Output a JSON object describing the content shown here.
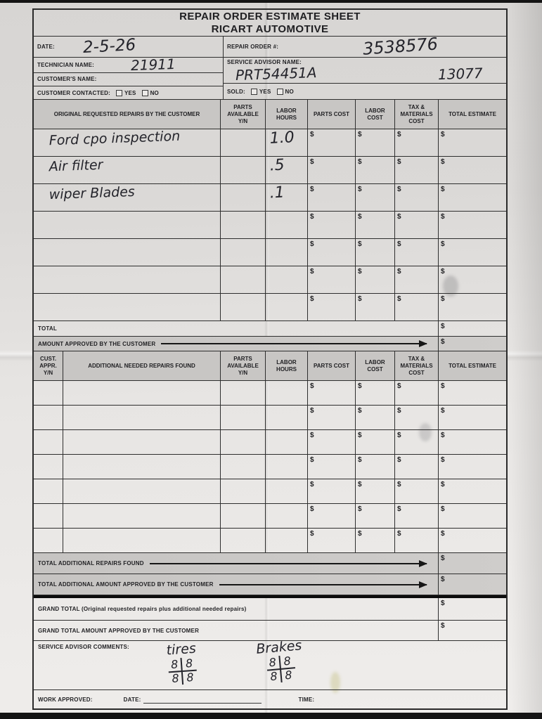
{
  "currency_symbol": "$",
  "title": {
    "line1": "REPAIR ORDER ESTIMATE SHEET",
    "line2": "RICART AUTOMOTIVE"
  },
  "info": {
    "date_label": "DATE:",
    "date_value": "2-5-26",
    "technician_label": "TECHNICIAN NAME:",
    "technician_value": "21911",
    "customer_name_label": "CUSTOMER'S NAME:",
    "customer_contacted_label": "CUSTOMER CONTACTED:",
    "repair_order_label": "REPAIR ORDER #:",
    "repair_order_value": "3538576",
    "advisor_label": "SERVICE ADVISOR NAME:",
    "advisor_value_left": "PRT54451A",
    "advisor_value_right": "13077",
    "sold_label": "SOLD:",
    "yes_label": "YES",
    "no_label": "NO"
  },
  "table1": {
    "headers": [
      "ORIGINAL REQUESTED REPAIRS BY THE CUSTOMER",
      "PARTS AVAILABLE Y/N",
      "LABOR HOURS",
      "PARTS COST",
      "LABOR COST",
      "TAX & MATERIALS COST",
      "TOTAL ESTIMATE"
    ],
    "rows": [
      {
        "description": "Ford cpo inspection",
        "labor_hours": "1.0"
      },
      {
        "description": "Air filter",
        "labor_hours": ".5"
      },
      {
        "description": "wiper Blades",
        "labor_hours": ".1"
      },
      {
        "description": "",
        "labor_hours": ""
      },
      {
        "description": "",
        "labor_hours": ""
      },
      {
        "description": "",
        "labor_hours": ""
      },
      {
        "description": "",
        "labor_hours": ""
      }
    ],
    "total_label": "TOTAL",
    "amount_approved_label": "AMOUNT APPROVED BY THE CUSTOMER"
  },
  "table2": {
    "headers": [
      "CUST. APPR. Y/N",
      "ADDITIONAL NEEDED REPAIRS FOUND",
      "PARTS AVAILABLE Y/N",
      "LABOR HOURS",
      "PARTS COST",
      "LABOR COST",
      "TAX & MATERIALS COST",
      "TOTAL ESTIMATE"
    ],
    "row_count": 7,
    "total_additional_label": "TOTAL ADDITIONAL REPAIRS FOUND",
    "total_additional_approved_label": "TOTAL ADDITIONAL AMOUNT APPROVED BY THE CUSTOMER"
  },
  "summary": {
    "grand_total_label": "GRAND TOTAL (Original requested repairs plus additional needed repairs)",
    "grand_total_approved_label": "GRAND TOTAL AMOUNT APPROVED BY THE CUSTOMER"
  },
  "comments": {
    "label": "SERVICE ADVISOR COMMENTS:",
    "tires_label": "tires",
    "tires_values": [
      "8",
      "8",
      "8",
      "8"
    ],
    "brakes_label": "Brakes",
    "brakes_values": [
      "8",
      "8",
      "8",
      "8"
    ]
  },
  "footer": {
    "work_approved_label": "WORK APPROVED:",
    "date_label": "DATE:",
    "time_label": "TIME:"
  }
}
